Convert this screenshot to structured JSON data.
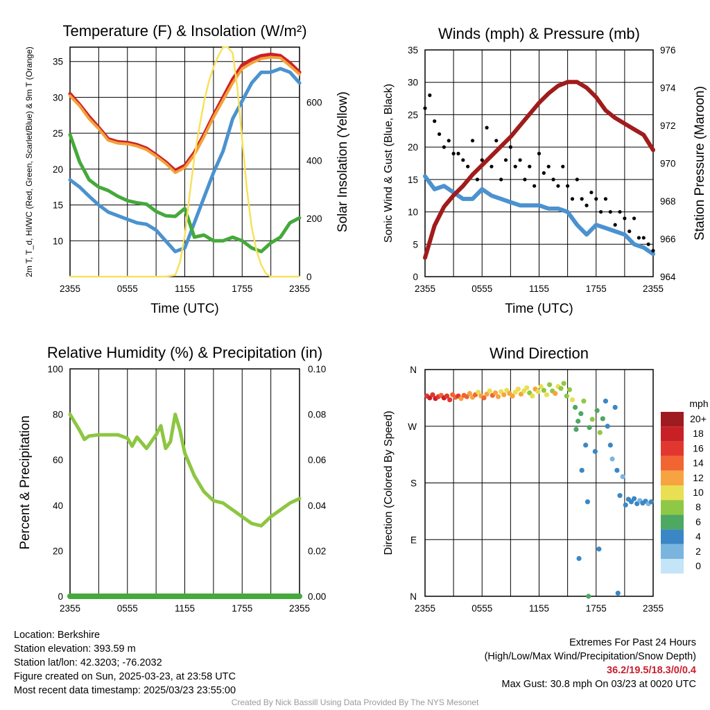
{
  "colors": {
    "temp": "#cc2027",
    "hiwc": "#e8533a",
    "t9m": "#f2a13a",
    "dewpoint": "#45a93b",
    "insolation": "#f8e15b",
    "wind": "#4b92cf",
    "gust": "#000000",
    "pressure": "#a01c1c",
    "rh": "#8dc641",
    "precip": "#45a93b"
  },
  "chart_data": [
    {
      "id": "temperature",
      "type": "line",
      "title": "Temperature (F) & Insolation (W/m²)",
      "xlabel": "Time (UTC)",
      "ylabel": "2m T, T_d, HI/WC (Red, Green, Scarlet/Blue) & 9m T (Orange)",
      "ylabel_right": "Solar Insolation (Yellow)",
      "xlim": [
        0,
        24
      ],
      "ylim": [
        5,
        37
      ],
      "ylim_right": [
        0,
        790
      ],
      "xticks": [
        "2355",
        "0555",
        "1155",
        "1755",
        "2355"
      ],
      "yticks": [
        10,
        15,
        20,
        25,
        30,
        35
      ],
      "yticks_right": [
        0,
        200,
        400,
        600
      ],
      "series": [
        {
          "x": [
            0,
            1,
            2,
            3,
            4,
            5,
            6,
            7,
            8,
            9,
            10,
            11,
            12,
            13,
            14,
            15,
            16,
            17,
            18,
            19,
            20,
            21,
            22,
            23,
            24
          ],
          "values": [
            30.5,
            29,
            27.3,
            25.8,
            24.2,
            23.8,
            23.7,
            23.4,
            22.9,
            22,
            21,
            19.8,
            20.5,
            22.3,
            24.8,
            27.5,
            30,
            32.5,
            34.5,
            35.3,
            35.8,
            36,
            35.8,
            34.8,
            33.5
          ],
          "axis": "left",
          "color": "temp"
        },
        {
          "x": [
            0,
            1,
            2,
            3,
            4,
            5,
            6,
            7,
            8,
            9,
            10,
            11,
            12,
            13,
            14,
            15,
            16,
            17,
            18,
            19,
            20,
            21,
            22,
            23,
            24
          ],
          "values": [
            30.2,
            28.8,
            27,
            25.6,
            24,
            23.6,
            23.5,
            23.2,
            22.7,
            21.8,
            20.8,
            19.5,
            20.2,
            22,
            24.5,
            27.2,
            29.6,
            32,
            34,
            34.8,
            35.4,
            35.6,
            35.5,
            34.4,
            33.2
          ],
          "axis": "left",
          "color": "t9m"
        },
        {
          "x": [
            0,
            1,
            2,
            3,
            4,
            5,
            6,
            7,
            8,
            9,
            10,
            11,
            12,
            13,
            14,
            15,
            16,
            17,
            18,
            19,
            20,
            21,
            22,
            23,
            24
          ],
          "values": [
            18.5,
            17.5,
            16.2,
            15,
            14,
            13.5,
            13,
            12.5,
            12.3,
            11.5,
            10,
            8.5,
            9,
            12.5,
            16,
            19.5,
            22.5,
            27,
            29.5,
            32,
            33.5,
            33.5,
            34,
            33.5,
            32
          ],
          "axis": "left",
          "color": "wind"
        },
        {
          "x": [
            0,
            1,
            2,
            3,
            4,
            5,
            6,
            7,
            8,
            9,
            10,
            11,
            12,
            13,
            14,
            15,
            16,
            17,
            18,
            19,
            20,
            21,
            22,
            23,
            24
          ],
          "values": [
            24.8,
            21,
            18.5,
            17.5,
            17,
            16.2,
            15.6,
            15.3,
            15.1,
            14.1,
            13.5,
            13.4,
            14.5,
            10.5,
            10.8,
            10,
            10,
            10.5,
            10,
            9,
            8.5,
            9.7,
            10.5,
            12.5,
            13.2
          ],
          "axis": "left",
          "color": "dewpoint"
        },
        {
          "x": [
            0,
            10,
            11,
            11.5,
            12,
            12.5,
            13,
            13.5,
            14,
            14.5,
            15,
            15.5,
            16,
            16.5,
            17,
            17.5,
            18,
            18.5,
            19,
            19.5,
            20,
            20.5,
            21,
            21.5,
            22,
            24
          ],
          "values": [
            0,
            0,
            5,
            50,
            140,
            280,
            410,
            510,
            600,
            670,
            720,
            760,
            790,
            790,
            770,
            650,
            470,
            300,
            170,
            90,
            40,
            10,
            0,
            0,
            0,
            0
          ],
          "axis": "right",
          "color": "insolation"
        }
      ]
    },
    {
      "id": "winds",
      "type": "line",
      "title": "Winds (mph) & Pressure (mb)",
      "xlabel": "Time (UTC)",
      "ylabel": "Sonic Wind & Gust (Blue, Black)",
      "ylabel_right": "Station Pressure (Maroon)",
      "xlim": [
        0,
        24
      ],
      "ylim": [
        0,
        35
      ],
      "ylim_right": [
        964,
        976
      ],
      "xticks": [
        "2355",
        "0555",
        "1155",
        "1755",
        "2355"
      ],
      "yticks": [
        0,
        5,
        10,
        15,
        20,
        25,
        30,
        35
      ],
      "yticks_right": [
        964,
        966,
        968,
        970,
        972,
        974,
        976
      ],
      "series": [
        {
          "x": [
            0,
            1,
            2,
            3,
            4,
            5,
            6,
            7,
            8,
            9,
            10,
            11,
            12,
            13,
            14,
            15,
            16,
            17,
            18,
            19,
            20,
            21,
            22,
            23,
            24
          ],
          "values": [
            15.5,
            13.5,
            14,
            13,
            12,
            12,
            13.5,
            12.5,
            12,
            11.5,
            11,
            11,
            11,
            10.5,
            10.5,
            10,
            8,
            6.5,
            8,
            7.5,
            7,
            6.5,
            5,
            4.5,
            3.5
          ],
          "axis": "left",
          "color": "wind"
        },
        {
          "x": [
            0,
            0.5,
            1,
            1.5,
            2,
            2.5,
            3,
            3.5,
            4,
            4.5,
            5,
            5.5,
            6,
            6.5,
            7,
            7.5,
            8,
            8.5,
            9,
            9.5,
            10,
            10.5,
            11,
            11.5,
            12,
            12.5,
            13,
            13.5,
            14,
            14.5,
            15,
            15.5,
            16,
            16.5,
            17,
            17.5,
            18,
            18.5,
            19,
            19.5,
            20,
            20.5,
            21,
            21.5,
            22,
            22.5,
            23,
            23.5,
            24
          ],
          "values": [
            26,
            28,
            24,
            22,
            20,
            21,
            19,
            19,
            18,
            17,
            21,
            15,
            18,
            23,
            17,
            21,
            15,
            18,
            20,
            17,
            18,
            15,
            17,
            14,
            19,
            16,
            17,
            15,
            14,
            17,
            14,
            12,
            15,
            12,
            11,
            13,
            12,
            10,
            12,
            10,
            8,
            10,
            9,
            7,
            9,
            6,
            6,
            5,
            4
          ],
          "axis": "left",
          "color": "gust"
        },
        {
          "x": [
            0,
            1,
            2,
            3,
            4,
            5,
            6,
            7,
            8,
            9,
            10,
            11,
            12,
            13,
            14,
            15,
            16,
            17,
            18,
            19,
            20,
            21,
            22,
            23,
            24
          ],
          "values": [
            965,
            966.7,
            967.7,
            968.3,
            968.8,
            969.4,
            969.9,
            970.4,
            970.9,
            971.4,
            972,
            972.6,
            973.2,
            973.7,
            974.1,
            974.3,
            974.3,
            974,
            973.5,
            972.8,
            972.4,
            972.1,
            971.8,
            971.5,
            970.7
          ],
          "axis": "right",
          "color": "pressure"
        }
      ]
    },
    {
      "id": "humidity",
      "type": "line",
      "title": "Relative Humidity (%) & Precipitation (in)",
      "xlabel": "",
      "ylabel": "Percent & Precipitation",
      "xlim": [
        0,
        24
      ],
      "ylim": [
        0,
        100
      ],
      "ylim_right": [
        0,
        0.1
      ],
      "xticks": [
        "2355",
        "0555",
        "1155",
        "1755",
        "2355"
      ],
      "yticks": [
        0,
        20,
        40,
        60,
        80,
        100
      ],
      "yticks_right": [
        "0.00",
        "0.02",
        "0.04",
        "0.06",
        "0.08",
        "0.10"
      ],
      "series": [
        {
          "x": [
            0,
            1,
            1.5,
            2,
            3,
            4,
            5,
            6,
            6.5,
            7,
            8,
            9,
            9.5,
            10,
            10.5,
            11,
            11.5,
            12,
            13,
            14,
            15,
            16,
            17,
            18,
            19,
            20,
            21,
            22,
            23,
            24
          ],
          "values": [
            80,
            73,
            69,
            70.5,
            71,
            71,
            71,
            69.5,
            66,
            70,
            65,
            71,
            75,
            65,
            68,
            80,
            73,
            63,
            53,
            46,
            42,
            41,
            38,
            35,
            32,
            31,
            35,
            38,
            41,
            43
          ],
          "axis": "left",
          "color": "rh"
        },
        {
          "x": [
            0,
            24
          ],
          "values": [
            0,
            0
          ],
          "axis": "right",
          "color": "precip"
        }
      ]
    },
    {
      "id": "direction",
      "type": "scatter",
      "title": "Wind Direction",
      "xlabel": "",
      "ylabel": "Direction (Colored By Speed)",
      "xlim": [
        0,
        24
      ],
      "ylim": [
        0,
        360
      ],
      "xticks": [
        "2355",
        "0555",
        "1155",
        "1755",
        "2355"
      ],
      "yticks": [
        "N",
        "E",
        "S",
        "W",
        "N"
      ],
      "legend_title": "mph",
      "legend_labels": [
        "20+",
        "18",
        "16",
        "14",
        "12",
        "10",
        "8",
        "6",
        "4",
        "2",
        "0"
      ],
      "legend_colors": [
        "#9e1b1f",
        "#c72027",
        "#e2372e",
        "#f06532",
        "#f7a341",
        "#e9df52",
        "#8fc844",
        "#4da861",
        "#3b87c5",
        "#7ab5e0",
        "#c4e4f8"
      ],
      "points": [
        [
          0.2,
          318,
          16
        ],
        [
          0.5,
          315,
          17
        ],
        [
          0.8,
          320,
          15
        ],
        [
          1.1,
          314,
          18
        ],
        [
          1.4,
          317,
          16
        ],
        [
          1.7,
          319,
          14
        ],
        [
          2,
          315,
          17
        ],
        [
          2.3,
          318,
          15
        ],
        [
          2.6,
          312,
          16
        ],
        [
          2.9,
          320,
          14
        ],
        [
          3.2,
          316,
          13
        ],
        [
          3.5,
          318,
          15
        ],
        [
          3.8,
          314,
          12
        ],
        [
          4.1,
          319,
          14
        ],
        [
          4.4,
          317,
          13
        ],
        [
          4.7,
          322,
          11
        ],
        [
          5,
          316,
          12
        ],
        [
          5.3,
          320,
          13
        ],
        [
          5.6,
          324,
          10
        ],
        [
          5.9,
          318,
          12
        ],
        [
          6.2,
          315,
          14
        ],
        [
          6.5,
          321,
          11
        ],
        [
          6.8,
          326,
          10
        ],
        [
          7.1,
          319,
          13
        ],
        [
          7.4,
          323,
          12
        ],
        [
          7.7,
          317,
          11
        ],
        [
          8,
          325,
          10
        ],
        [
          8.3,
          320,
          12
        ],
        [
          8.6,
          327,
          9
        ],
        [
          8.9,
          322,
          11
        ],
        [
          9.2,
          318,
          12
        ],
        [
          9.5,
          324,
          10
        ],
        [
          9.8,
          329,
          9
        ],
        [
          10.1,
          321,
          11
        ],
        [
          10.4,
          326,
          10
        ],
        [
          10.7,
          331,
          9
        ],
        [
          11,
          323,
          8
        ],
        [
          11.3,
          318,
          10
        ],
        [
          11.6,
          329,
          11
        ],
        [
          11.9,
          325,
          9
        ],
        [
          12.2,
          333,
          9
        ],
        [
          12.5,
          327,
          8
        ],
        [
          12.8,
          320,
          10
        ],
        [
          13.1,
          336,
          7
        ],
        [
          13.4,
          326,
          8
        ],
        [
          13.7,
          322,
          11
        ],
        [
          14,
          333,
          9
        ],
        [
          14.3,
          330,
          7
        ],
        [
          14.6,
          338,
          8
        ],
        [
          14.9,
          318,
          8
        ],
        [
          15.2,
          328,
          7
        ],
        [
          15.5,
          312,
          9
        ],
        [
          15.8,
          300,
          6
        ],
        [
          16.1,
          278,
          5
        ],
        [
          16.4,
          290,
          6
        ],
        [
          16.7,
          310,
          7
        ],
        [
          16.9,
          240,
          4
        ],
        [
          17.1,
          150,
          3
        ],
        [
          17.3,
          268,
          5
        ],
        [
          17.6,
          281,
          7
        ],
        [
          17.9,
          230,
          4
        ],
        [
          18.1,
          295,
          6
        ],
        [
          18.4,
          260,
          7
        ],
        [
          18.7,
          282,
          5
        ],
        [
          19,
          310,
          4
        ],
        [
          19.2,
          270,
          3
        ],
        [
          19.5,
          240,
          4
        ],
        [
          19.7,
          218,
          2
        ],
        [
          20,
          300,
          4
        ],
        [
          20.2,
          200,
          3
        ],
        [
          20.5,
          160,
          4
        ],
        [
          20.8,
          190,
          2
        ],
        [
          21.1,
          145,
          3
        ],
        [
          21.4,
          154,
          4
        ],
        [
          21.7,
          150,
          3
        ],
        [
          22,
          155,
          4
        ],
        [
          22.3,
          147,
          3
        ],
        [
          22.6,
          152,
          2
        ],
        [
          22.9,
          148,
          4
        ],
        [
          23.2,
          151,
          3
        ],
        [
          23.5,
          147,
          2
        ],
        [
          23.8,
          150,
          3
        ],
        [
          17.2,
          0,
          6
        ],
        [
          20.3,
          5,
          4
        ],
        [
          18.3,
          75,
          3
        ],
        [
          16.5,
          200,
          4
        ],
        [
          15.9,
          265,
          6
        ],
        [
          16.2,
          60,
          3
        ]
      ]
    }
  ],
  "info_left": [
    "Location: Berkshire",
    "Station elevation: 393.59 m",
    "Station lat/lon: 42.3203; -76.2032",
    "Figure created on Sun, 2025-03-23, at 23:58 UTC",
    "Most recent data timestamp: 2025/03/23 23:55:00"
  ],
  "info_right": {
    "line1": "Extremes For Past 24 Hours",
    "line2": "(High/Low/Max Wind/Precipitation/Snow Depth)",
    "extremes": "36.2/19.5/18.3/0/0.4",
    "gust": "Max Gust: 30.8 mph On 03/23 at 0020 UTC"
  },
  "credit": "Created By Nick Bassill Using Data Provided By The NYS Mesonet"
}
